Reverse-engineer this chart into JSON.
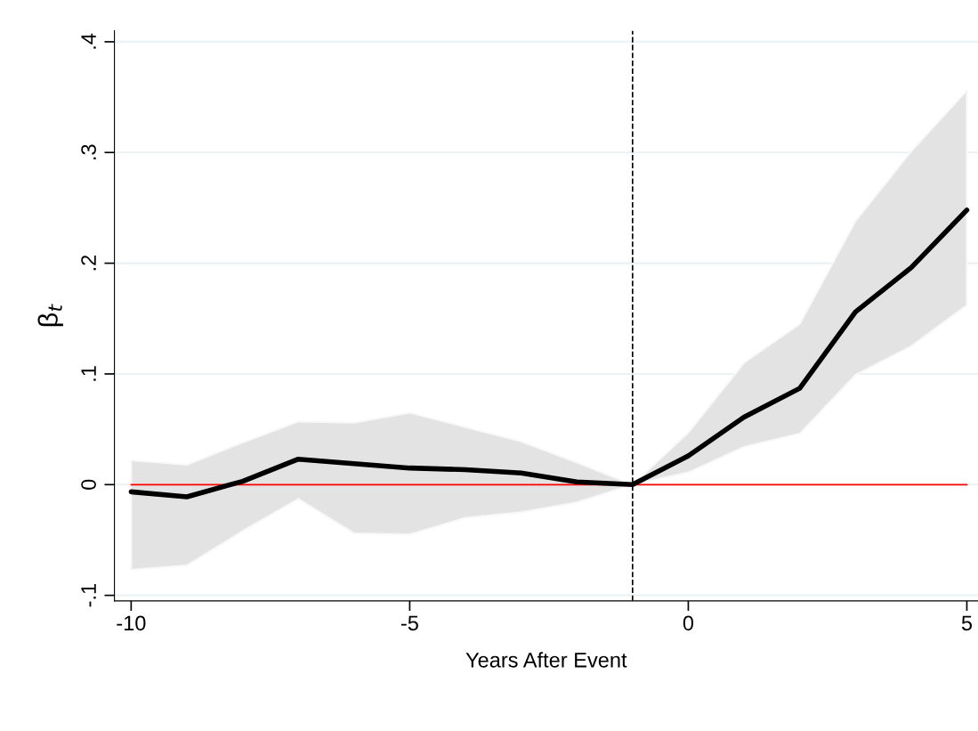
{
  "chart_data": {
    "type": "line",
    "xlabel": "Years After Event",
    "ylabel": "β$_{t}$",
    "x": [
      -10,
      -9,
      -8,
      -7,
      -6,
      -5,
      -4,
      -3,
      -2,
      -1,
      0,
      1,
      2,
      3,
      4,
      5
    ],
    "series": [
      {
        "color": "#000000",
        "values": [
          -0.0065,
          -0.011,
          0.003,
          0.023,
          0.019,
          0.015,
          0.0135,
          0.0105,
          0.0025,
          0,
          0.026,
          0.061,
          0.087,
          0.156,
          0.196,
          0.248
        ],
        "lower": [
          -0.077,
          -0.073,
          -0.042,
          -0.013,
          -0.044,
          -0.045,
          -0.03,
          -0.025,
          -0.016,
          0,
          0.011,
          0.034,
          0.046,
          0.099,
          0.125,
          0.162
        ],
        "upper": [
          0.022,
          0.018,
          0.038,
          0.057,
          0.056,
          0.065,
          0.052,
          0.039,
          0.02,
          0,
          0.047,
          0.11,
          0.145,
          0.238,
          0.301,
          0.356
        ]
      }
    ],
    "xlim": [
      -10.3,
      5.2
    ],
    "ylim": [
      -0.105,
      0.41
    ],
    "xticks": [
      -10,
      -5,
      0,
      5
    ],
    "yticks": [
      {
        "value": -0.1,
        "label": "-.1"
      },
      0,
      {
        "value": 0.1,
        "label": ".1"
      },
      {
        "value": 0.2,
        "label": ".2"
      },
      {
        "value": 0.3,
        "label": ".3"
      },
      {
        "value": 0.4,
        "label": ".4"
      }
    ],
    "ref_lines": [
      {
        "axis": "y",
        "value": 0,
        "color": "#ff0000",
        "line_style": "solid"
      },
      {
        "axis": "x",
        "value": -1,
        "color": "#000000",
        "line_style": "dashed"
      }
    ],
    "grid": "y",
    "line_style": "solid",
    "marker": "none",
    "legend": false
  }
}
